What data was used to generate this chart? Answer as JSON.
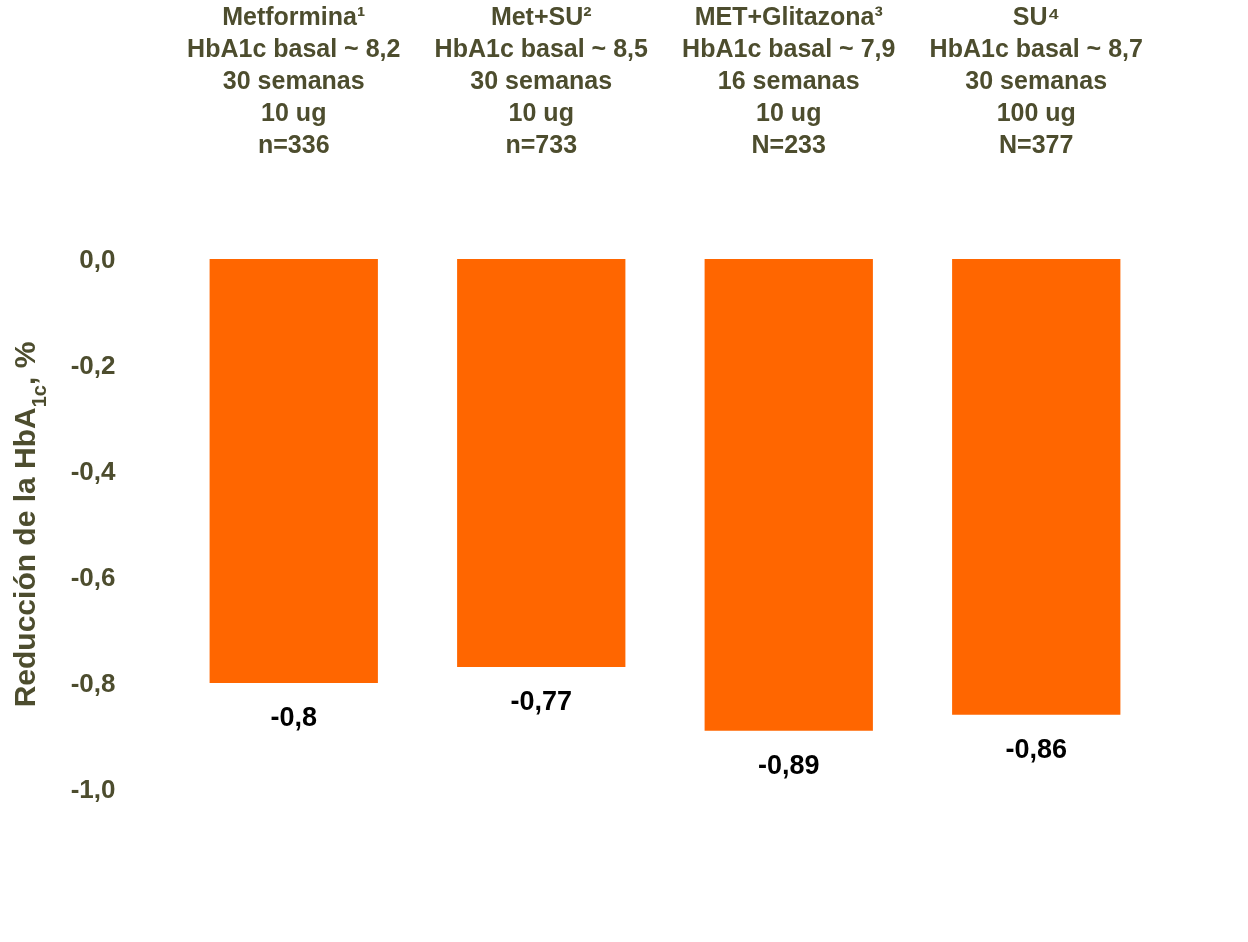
{
  "chart_data": {
    "type": "bar",
    "categories": [
      "Metformina¹\nHbA1c basal ~ 8,2\n30 semanas\n10 ug\n\nn=336",
      "Met+SU²\nHbA1c basal ~ 8,5\n30 semanas\n10 ug\n\nn=733",
      "MET+Glitazona³\nHbA1c basal ~ 7,9\n16 semanas\n10 ug\n\nN=233",
      "SU⁴\nHbA1c basal ~ 8,7\n30 semanas\n100 ug\n\nN=377"
    ],
    "values": [
      -0.8,
      -0.77,
      -0.89,
      -0.86
    ],
    "value_labels": [
      "-0,8",
      "-0,77",
      "-0,89",
      "-0,86"
    ],
    "color": "#ff6600",
    "ylabel": "Reducción de la HbA$_{1c}$, %",
    "ylim": [
      -1,
      0
    ],
    "yticks": [
      {
        "value": 0,
        "label": "0,0"
      },
      {
        "value": -0.2,
        "label": "-0,2"
      },
      {
        "value": -0.4,
        "label": "-0,4"
      },
      {
        "value": -0.6,
        "label": "-0,6"
      },
      {
        "value": -0.8,
        "label": "-0,8"
      },
      {
        "value": -1,
        "label": "-1,0"
      }
    ]
  }
}
